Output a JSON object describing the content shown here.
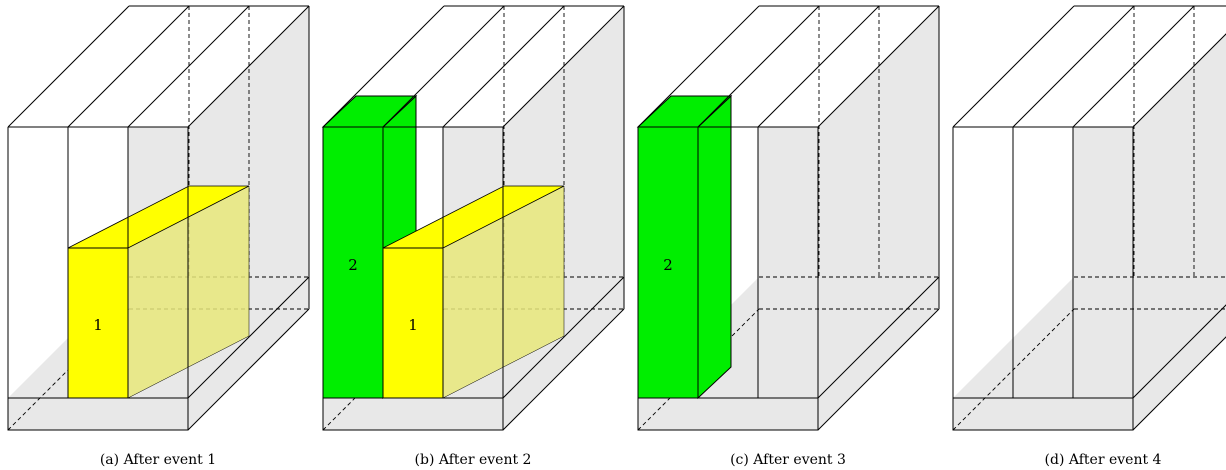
{
  "colors": {
    "line": "#000000",
    "gray": "#e8e8e8",
    "grayOpaque": "#e6e6e6",
    "block1": "#ffff00",
    "block1Side": "#e8e87a",
    "block2": "#00ee00"
  },
  "panels": [
    {
      "caption": "(a) After event 1",
      "blocks": [
        {
          "label": "1",
          "slot": 1,
          "height": "short",
          "color": "yellow"
        }
      ]
    },
    {
      "caption": "(b) After event 2",
      "blocks": [
        {
          "label": "2",
          "slot": 0,
          "height": "tall",
          "color": "green"
        },
        {
          "label": "1",
          "slot": 1,
          "height": "short",
          "color": "yellow"
        }
      ]
    },
    {
      "caption": "(c) After event 3",
      "blocks": [
        {
          "label": "2",
          "slot": 0,
          "height": "tall",
          "color": "green"
        }
      ]
    },
    {
      "caption": "(d) After event 4",
      "blocks": []
    }
  ]
}
